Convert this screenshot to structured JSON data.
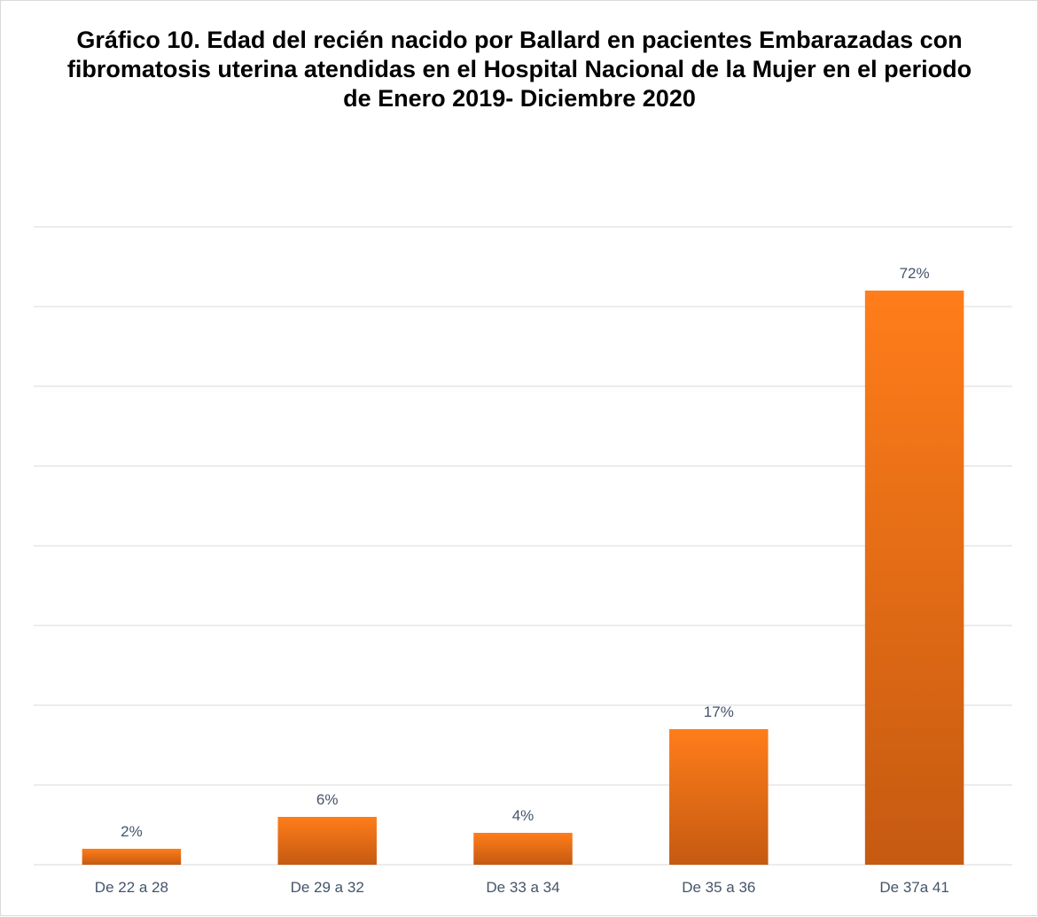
{
  "chart_data": {
    "type": "bar",
    "title": "Gráfico 10. Edad del recién nacido por Ballard en pacientes Embarazadas con fibromatosis uterina atendidas en el Hospital Nacional de la Mujer en el periodo de Enero 2019- Diciembre 2020",
    "categories": [
      "De 22 a 28",
      "De 29 a 32",
      "De 33 a 34",
      "De 35 a 36",
      "De 37a 41"
    ],
    "values": [
      2,
      6,
      4,
      17,
      72
    ],
    "data_labels": [
      "2%",
      "6%",
      "4%",
      "17%",
      "72%"
    ],
    "unit": "%",
    "ylim": [
      0,
      80
    ],
    "grid": true,
    "legend": "none",
    "colors": {
      "bar_top": "#ff7d1a",
      "bar_bottom": "#c55a11",
      "grid": "#d9d9d9",
      "text": "#44546a"
    }
  }
}
